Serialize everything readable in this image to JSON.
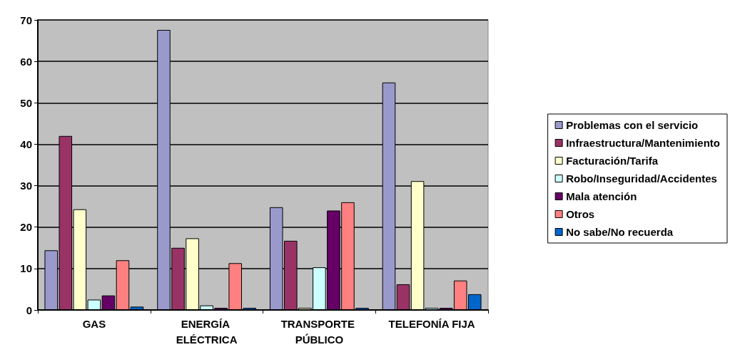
{
  "chart_data": {
    "type": "bar",
    "categories": [
      "GAS",
      "ENERGÍA ELÉCTRICA",
      "TRANSPORTE PÚBLICO",
      "TELEFONÍA FIJA"
    ],
    "series": [
      {
        "name": "Problemas con el servicio",
        "color": "#9999cc",
        "values": [
          14.4,
          67.6,
          24.8,
          54.9
        ]
      },
      {
        "name": "Infraestructura/Mantenimiento",
        "color": "#993366",
        "values": [
          42,
          15,
          16.7,
          6.2
        ]
      },
      {
        "name": "Facturación/Tarifa",
        "color": "#ffffcc",
        "values": [
          24.3,
          17.3,
          0.3,
          31.1
        ]
      },
      {
        "name": "Robo/Inseguridad/Accidentes",
        "color": "#ccffff",
        "values": [
          2.5,
          1.1,
          10.3,
          0.2
        ]
      },
      {
        "name": "Mala atención",
        "color": "#660066",
        "values": [
          3.5,
          0.2,
          24,
          0.4
        ]
      },
      {
        "name": "Otros",
        "color": "#ff8080",
        "values": [
          12,
          11.3,
          26,
          7.1
        ]
      },
      {
        "name": "No sabe/No recuerda",
        "color": "#0066cc",
        "values": [
          0.8,
          0.3,
          0.2,
          3.8
        ]
      }
    ],
    "ylim": [
      0,
      70
    ],
    "yticks": [
      0,
      10,
      20,
      30,
      40,
      50,
      60,
      70
    ],
    "grid": "y",
    "legend": "right"
  }
}
